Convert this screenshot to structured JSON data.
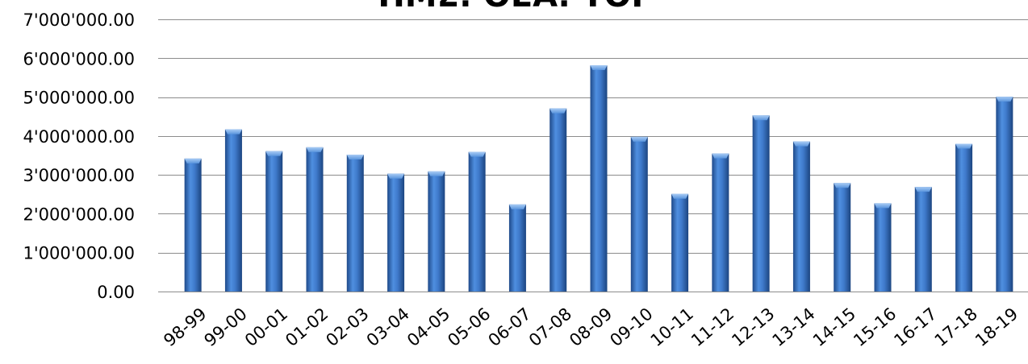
{
  "chart_data": {
    "type": "bar",
    "title": "ΠΜΣ: ΘΕΑ: ΤΟΡ",
    "xlabel": "",
    "ylabel": "",
    "categories": [
      "98-99",
      "99-00",
      "00-01",
      "01-02",
      "02-03",
      "03-04",
      "04-05",
      "05-06",
      "06-07",
      "07-08",
      "08-09",
      "09-10",
      "10-11",
      "11-12",
      "12-13",
      "13-14",
      "14-15",
      "15-16",
      "16-17",
      "17-18",
      "18-19"
    ],
    "values": [
      3420000,
      4170000,
      3610000,
      3710000,
      3520000,
      3030000,
      3090000,
      3590000,
      2240000,
      4710000,
      5820000,
      3980000,
      2510000,
      3550000,
      4530000,
      3860000,
      2790000,
      2270000,
      2690000,
      3800000,
      5010000
    ],
    "ylim": [
      0,
      7000000
    ],
    "yticks": [
      0,
      1000000,
      2000000,
      3000000,
      4000000,
      5000000,
      6000000,
      7000000
    ],
    "ytick_labels": [
      "0.00",
      "1'000'000.00",
      "2'000'000.00",
      "3'000'000.00",
      "4'000'000.00",
      "5'000'000.00",
      "6'000'000.00",
      "7'000'000.00"
    ],
    "grid": true,
    "legend": "none",
    "bar_color": "#3a6fb8"
  }
}
